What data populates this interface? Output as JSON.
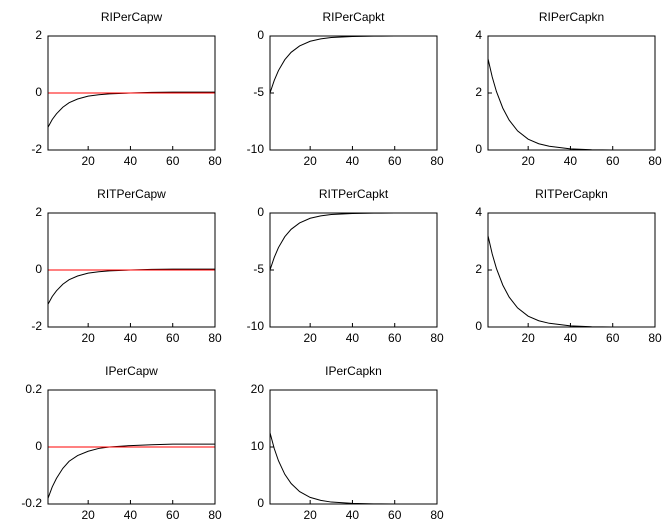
{
  "chart_data": [
    {
      "type": "line",
      "title": "RIPerCapw",
      "x": [
        1,
        3,
        5,
        8,
        11,
        15,
        20,
        25,
        30,
        40,
        50,
        60,
        70,
        80
      ],
      "series": [
        {
          "color": "#000000",
          "values": [
            -1.2,
            -0.93,
            -0.73,
            -0.5,
            -0.34,
            -0.21,
            -0.11,
            -0.06,
            -0.03,
            0,
            0.02,
            0.03,
            0.03,
            0.03
          ]
        },
        {
          "color": "#ff0000",
          "values": [
            0,
            0,
            0,
            0,
            0,
            0,
            0,
            0,
            0,
            0,
            0,
            0,
            0,
            0
          ]
        }
      ],
      "xlim": [
        1,
        80
      ],
      "xticks": [
        20,
        40,
        60,
        80
      ],
      "ylim": [
        -2,
        2
      ],
      "yticks": [
        -2,
        0,
        2
      ]
    },
    {
      "type": "line",
      "title": "RIPerCapkt",
      "x": [
        1,
        3,
        5,
        8,
        11,
        15,
        20,
        25,
        30,
        40,
        50,
        60,
        70,
        80
      ],
      "series": [
        {
          "color": "#000000",
          "values": [
            -5,
            -3.9,
            -3.03,
            -2.08,
            -1.43,
            -0.87,
            -0.46,
            -0.25,
            -0.13,
            -0.04,
            -0.01,
            0,
            0,
            0
          ]
        }
      ],
      "xlim": [
        1,
        80
      ],
      "xticks": [
        20,
        40,
        60,
        80
      ],
      "ylim": [
        -10,
        0
      ],
      "yticks": [
        -10,
        -5,
        0
      ]
    },
    {
      "type": "line",
      "title": "RIPerCapkn",
      "x": [
        1,
        3,
        5,
        8,
        11,
        15,
        20,
        25,
        30,
        40,
        50,
        60,
        70,
        80
      ],
      "series": [
        {
          "color": "#000000",
          "values": [
            3.2,
            2.56,
            2.05,
            1.47,
            1.05,
            0.67,
            0.38,
            0.22,
            0.13,
            0.04,
            0.01,
            0,
            0,
            0
          ]
        }
      ],
      "xlim": [
        1,
        80
      ],
      "xticks": [
        20,
        40,
        60,
        80
      ],
      "ylim": [
        0,
        4
      ],
      "yticks": [
        0,
        2,
        4
      ]
    },
    {
      "type": "line",
      "title": "RITPerCapw",
      "x": [
        1,
        3,
        5,
        8,
        11,
        15,
        20,
        25,
        30,
        40,
        50,
        60,
        70,
        80
      ],
      "series": [
        {
          "color": "#000000",
          "values": [
            -1.2,
            -0.93,
            -0.73,
            -0.5,
            -0.34,
            -0.21,
            -0.11,
            -0.06,
            -0.03,
            0,
            0.02,
            0.03,
            0.03,
            0.03
          ]
        },
        {
          "color": "#ff0000",
          "values": [
            0,
            0,
            0,
            0,
            0,
            0,
            0,
            0,
            0,
            0,
            0,
            0,
            0,
            0
          ]
        }
      ],
      "xlim": [
        1,
        80
      ],
      "xticks": [
        20,
        40,
        60,
        80
      ],
      "ylim": [
        -2,
        2
      ],
      "yticks": [
        -2,
        0,
        2
      ]
    },
    {
      "type": "line",
      "title": "RITPerCapkt",
      "x": [
        1,
        3,
        5,
        8,
        11,
        15,
        20,
        25,
        30,
        40,
        50,
        60,
        70,
        80
      ],
      "series": [
        {
          "color": "#000000",
          "values": [
            -5,
            -3.9,
            -3.03,
            -2.08,
            -1.43,
            -0.87,
            -0.46,
            -0.25,
            -0.13,
            -0.04,
            -0.01,
            0,
            0,
            0
          ]
        }
      ],
      "xlim": [
        1,
        80
      ],
      "xticks": [
        20,
        40,
        60,
        80
      ],
      "ylim": [
        -10,
        0
      ],
      "yticks": [
        -10,
        -5,
        0
      ]
    },
    {
      "type": "line",
      "title": "RITPerCapkn",
      "x": [
        1,
        3,
        5,
        8,
        11,
        15,
        20,
        25,
        30,
        40,
        50,
        60,
        70,
        80
      ],
      "series": [
        {
          "color": "#000000",
          "values": [
            3.2,
            2.56,
            2.05,
            1.47,
            1.05,
            0.67,
            0.38,
            0.22,
            0.13,
            0.04,
            0.01,
            0,
            0,
            0
          ]
        }
      ],
      "xlim": [
        1,
        80
      ],
      "xticks": [
        20,
        40,
        60,
        80
      ],
      "ylim": [
        0,
        4
      ],
      "yticks": [
        0,
        2,
        4
      ]
    },
    {
      "type": "line",
      "title": "IPerCapw",
      "x": [
        1,
        3,
        5,
        8,
        11,
        15,
        20,
        25,
        30,
        40,
        50,
        60,
        70,
        80
      ],
      "series": [
        {
          "color": "#000000",
          "values": [
            -0.18,
            -0.14,
            -0.11,
            -0.075,
            -0.05,
            -0.03,
            -0.015,
            -0.005,
            0,
            0.005,
            0.008,
            0.01,
            0.01,
            0.01
          ]
        },
        {
          "color": "#ff0000",
          "values": [
            0,
            0,
            0,
            0,
            0,
            0,
            0,
            0,
            0,
            0,
            0,
            0,
            0,
            0
          ]
        }
      ],
      "xlim": [
        1,
        80
      ],
      "xticks": [
        20,
        40,
        60,
        80
      ],
      "ylim": [
        -0.2,
        0.2
      ],
      "yticks": [
        -0.2,
        0,
        0.2
      ]
    },
    {
      "type": "line",
      "title": "IPerCapkn",
      "x": [
        1,
        3,
        5,
        8,
        11,
        15,
        20,
        25,
        30,
        40,
        50,
        60,
        70,
        80
      ],
      "series": [
        {
          "color": "#000000",
          "values": [
            12.5,
            9.74,
            7.59,
            5.21,
            3.59,
            2.18,
            1.16,
            0.63,
            0.34,
            0.1,
            0.03,
            0,
            0,
            0
          ]
        }
      ],
      "xlim": [
        1,
        80
      ],
      "xticks": [
        20,
        40,
        60,
        80
      ],
      "ylim": [
        0,
        20
      ],
      "yticks": [
        0,
        10,
        20
      ]
    }
  ]
}
